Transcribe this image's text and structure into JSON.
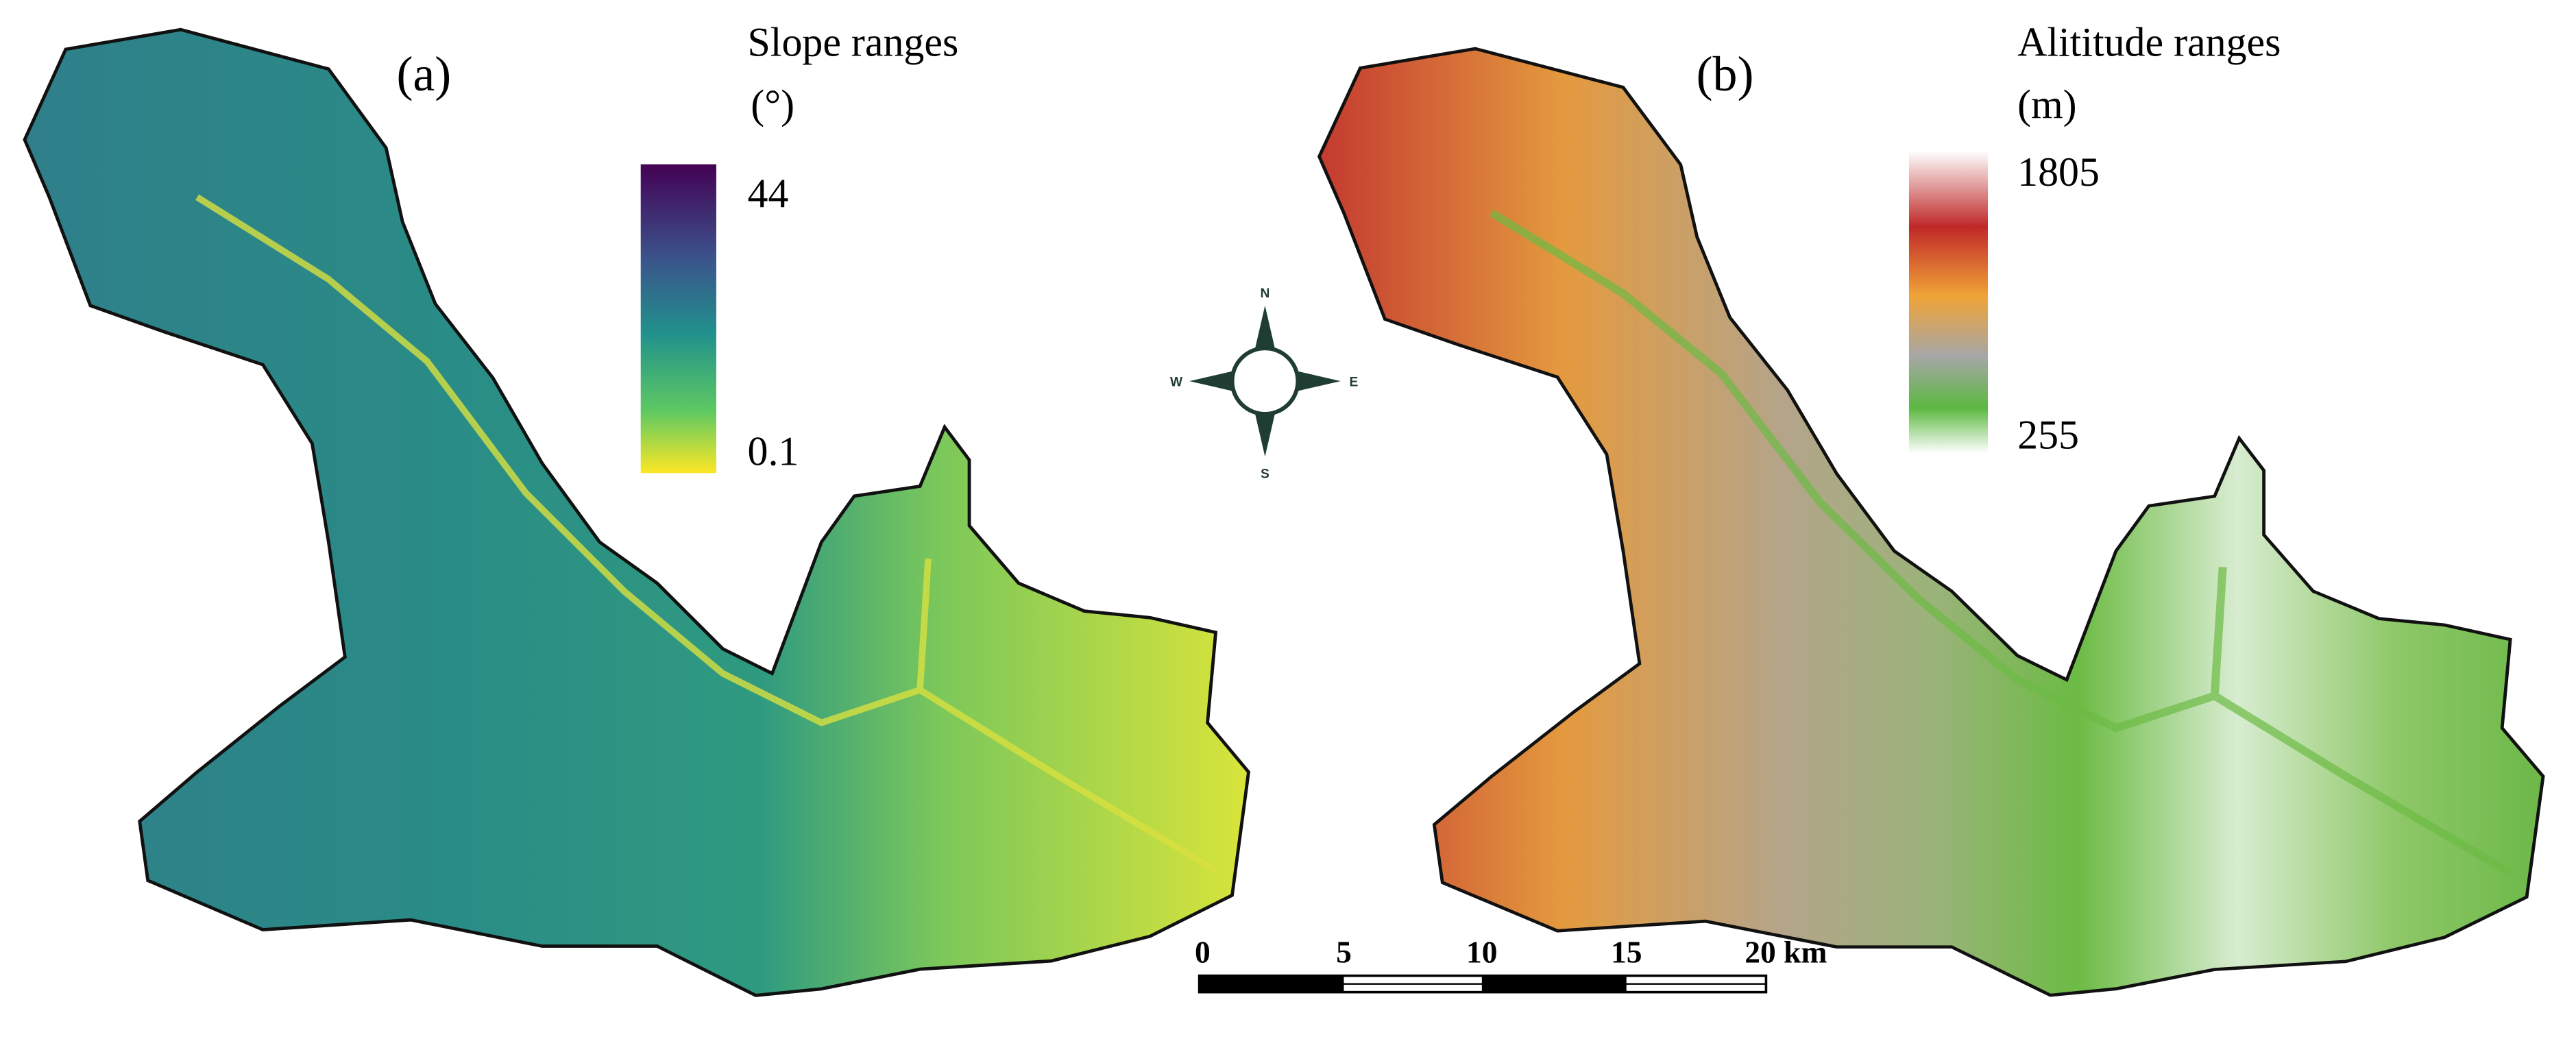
{
  "panels": [
    {
      "label": "(a)",
      "legend": {
        "title": "Slope ranges",
        "unit": "(°)",
        "max": "44",
        "min": "0.1"
      }
    },
    {
      "label": "(b)",
      "legend": {
        "title": "Alititude ranges",
        "unit": "(m)",
        "max": "1805",
        "min": "255"
      }
    }
  ],
  "compass": {
    "north": "N",
    "south": "S",
    "east": "E",
    "west": "W"
  },
  "scale_bar": {
    "labels": [
      "0",
      "5",
      "10",
      "15",
      "20 km"
    ]
  }
}
